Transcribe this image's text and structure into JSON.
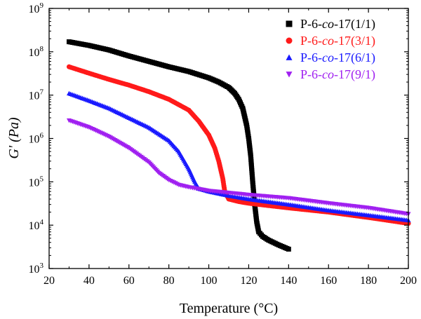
{
  "chart_data": {
    "type": "scatter",
    "xlabel": "Temperature (°C)",
    "ylabel": "G' (Pa)",
    "xlim": [
      20,
      200
    ],
    "ylim": [
      1000,
      1000000000
    ],
    "yscale": "log",
    "grid": false,
    "legend_position": "top-right",
    "x_ticks": [
      "20",
      "40",
      "60",
      "80",
      "100",
      "120",
      "140",
      "160",
      "180",
      "200"
    ],
    "y_ticks": [
      {
        "base": "10",
        "exp": "3"
      },
      {
        "base": "10",
        "exp": "4"
      },
      {
        "base": "10",
        "exp": "5"
      },
      {
        "base": "10",
        "exp": "6"
      },
      {
        "base": "10",
        "exp": "7"
      },
      {
        "base": "10",
        "exp": "8"
      },
      {
        "base": "10",
        "exp": "9"
      }
    ],
    "series": [
      {
        "name": "P-6-co-17(1/1)",
        "label_parts": [
          "P-6-",
          "co",
          "-17(1/1)"
        ],
        "color": "#000000",
        "marker": "square",
        "x": [
          30,
          40,
          50,
          60,
          70,
          80,
          90,
          100,
          105,
          110,
          113,
          115,
          117,
          119,
          120,
          121,
          122,
          123,
          124,
          125,
          127,
          130,
          135,
          140
        ],
        "y": [
          170000000,
          140000000,
          110000000,
          80000000,
          60000000,
          45000000,
          35000000,
          25000000,
          20000000,
          15000000,
          11000000,
          8000000,
          5000000,
          2000000,
          1000000,
          400000,
          100000,
          30000,
          12000,
          7000,
          5500,
          4500,
          3500,
          2800
        ]
      },
      {
        "name": "P-6-co-17(3/1)",
        "label_parts": [
          "P-6-",
          "co",
          "-17(3/1)"
        ],
        "color": "#ff1a1a",
        "marker": "circle",
        "x": [
          30,
          40,
          50,
          60,
          70,
          80,
          90,
          95,
          100,
          103,
          105,
          107,
          108,
          110,
          115,
          120,
          140,
          160,
          180,
          200
        ],
        "y": [
          45000000,
          32000000,
          23000000,
          17000000,
          12000000,
          8000000,
          4500000,
          2500000,
          1200000,
          600000,
          300000,
          120000,
          60000,
          40000,
          35000,
          32000,
          25000,
          20000,
          15000,
          11000
        ]
      },
      {
        "name": "P-6-co-17(6/1)",
        "label_parts": [
          "P-6-",
          "co",
          "-17(6/1)"
        ],
        "color": "#1a1aff",
        "marker": "triangle-up",
        "x": [
          30,
          40,
          50,
          60,
          70,
          80,
          85,
          90,
          93,
          95,
          100,
          110,
          120,
          140,
          160,
          180,
          200
        ],
        "y": [
          11000000,
          7500000,
          5000000,
          3000000,
          1800000,
          900000,
          500000,
          200000,
          100000,
          70000,
          60000,
          48000,
          40000,
          30000,
          22000,
          17000,
          13000
        ]
      },
      {
        "name": "P-6-co-17(9/1)",
        "label_parts": [
          "P-6-",
          "co",
          "-17(9/1)"
        ],
        "color": "#a020f0",
        "marker": "triangle-down",
        "x": [
          30,
          40,
          50,
          60,
          70,
          75,
          80,
          85,
          90,
          100,
          120,
          140,
          160,
          180,
          200
        ],
        "y": [
          2600000,
          1800000,
          1100000,
          600000,
          280000,
          160000,
          110000,
          85000,
          75000,
          62000,
          50000,
          42000,
          32000,
          25000,
          18000
        ]
      }
    ]
  }
}
